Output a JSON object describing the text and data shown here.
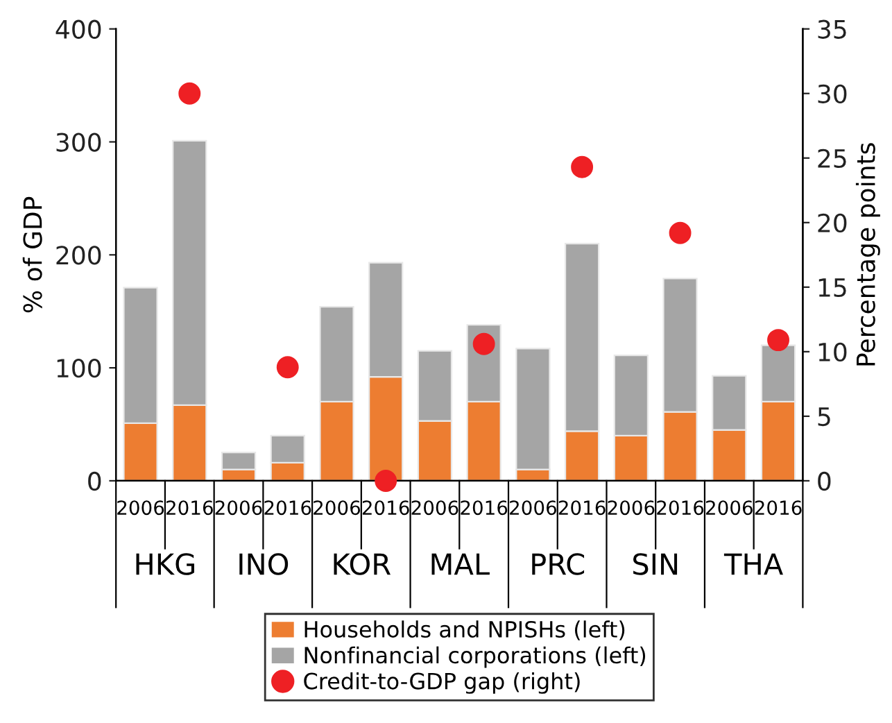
{
  "chart_data": {
    "type": "bar",
    "stacked": true,
    "ylabel": "% of GDP",
    "y2label": "Percentage points",
    "categories": [
      "2006",
      "2016",
      "2006",
      "2016",
      "2006",
      "2016",
      "2006",
      "2016",
      "2006",
      "2016",
      "2006",
      "2016",
      "2006",
      "2016"
    ],
    "annotations": [
      "HKG",
      "INO",
      "KOR",
      "MAL",
      "PRC",
      "SIN",
      "THA"
    ],
    "series": [
      {
        "name": "Households and NPISHs (left)",
        "color": "#ed7d31",
        "values": [
          51,
          67,
          10,
          16,
          70,
          92,
          53,
          70,
          10,
          44,
          40,
          61,
          45,
          70
        ]
      },
      {
        "name": "Nonfinancial corporations (left)",
        "color": "#a5a5a5",
        "values": [
          120,
          234,
          15,
          24,
          84,
          101,
          62,
          68,
          107,
          166,
          71,
          118,
          48,
          50
        ]
      },
      {
        "name": "Credit-to-GDP gap (right)",
        "type": "scatter",
        "axis": "y2",
        "marker": "circle",
        "color": "#ee2024",
        "values": [
          null,
          30.0,
          null,
          8.8,
          null,
          0,
          null,
          10.6,
          null,
          24.3,
          null,
          19.2,
          null,
          10.9
        ]
      }
    ],
    "ylim": [
      0,
      400
    ],
    "yticks": [
      0,
      100,
      200,
      300,
      400
    ],
    "y2lim": [
      0,
      35
    ],
    "y2ticks": [
      0,
      5,
      10,
      15,
      20,
      25,
      30,
      35
    ],
    "grid": false,
    "legend": "bottom"
  }
}
